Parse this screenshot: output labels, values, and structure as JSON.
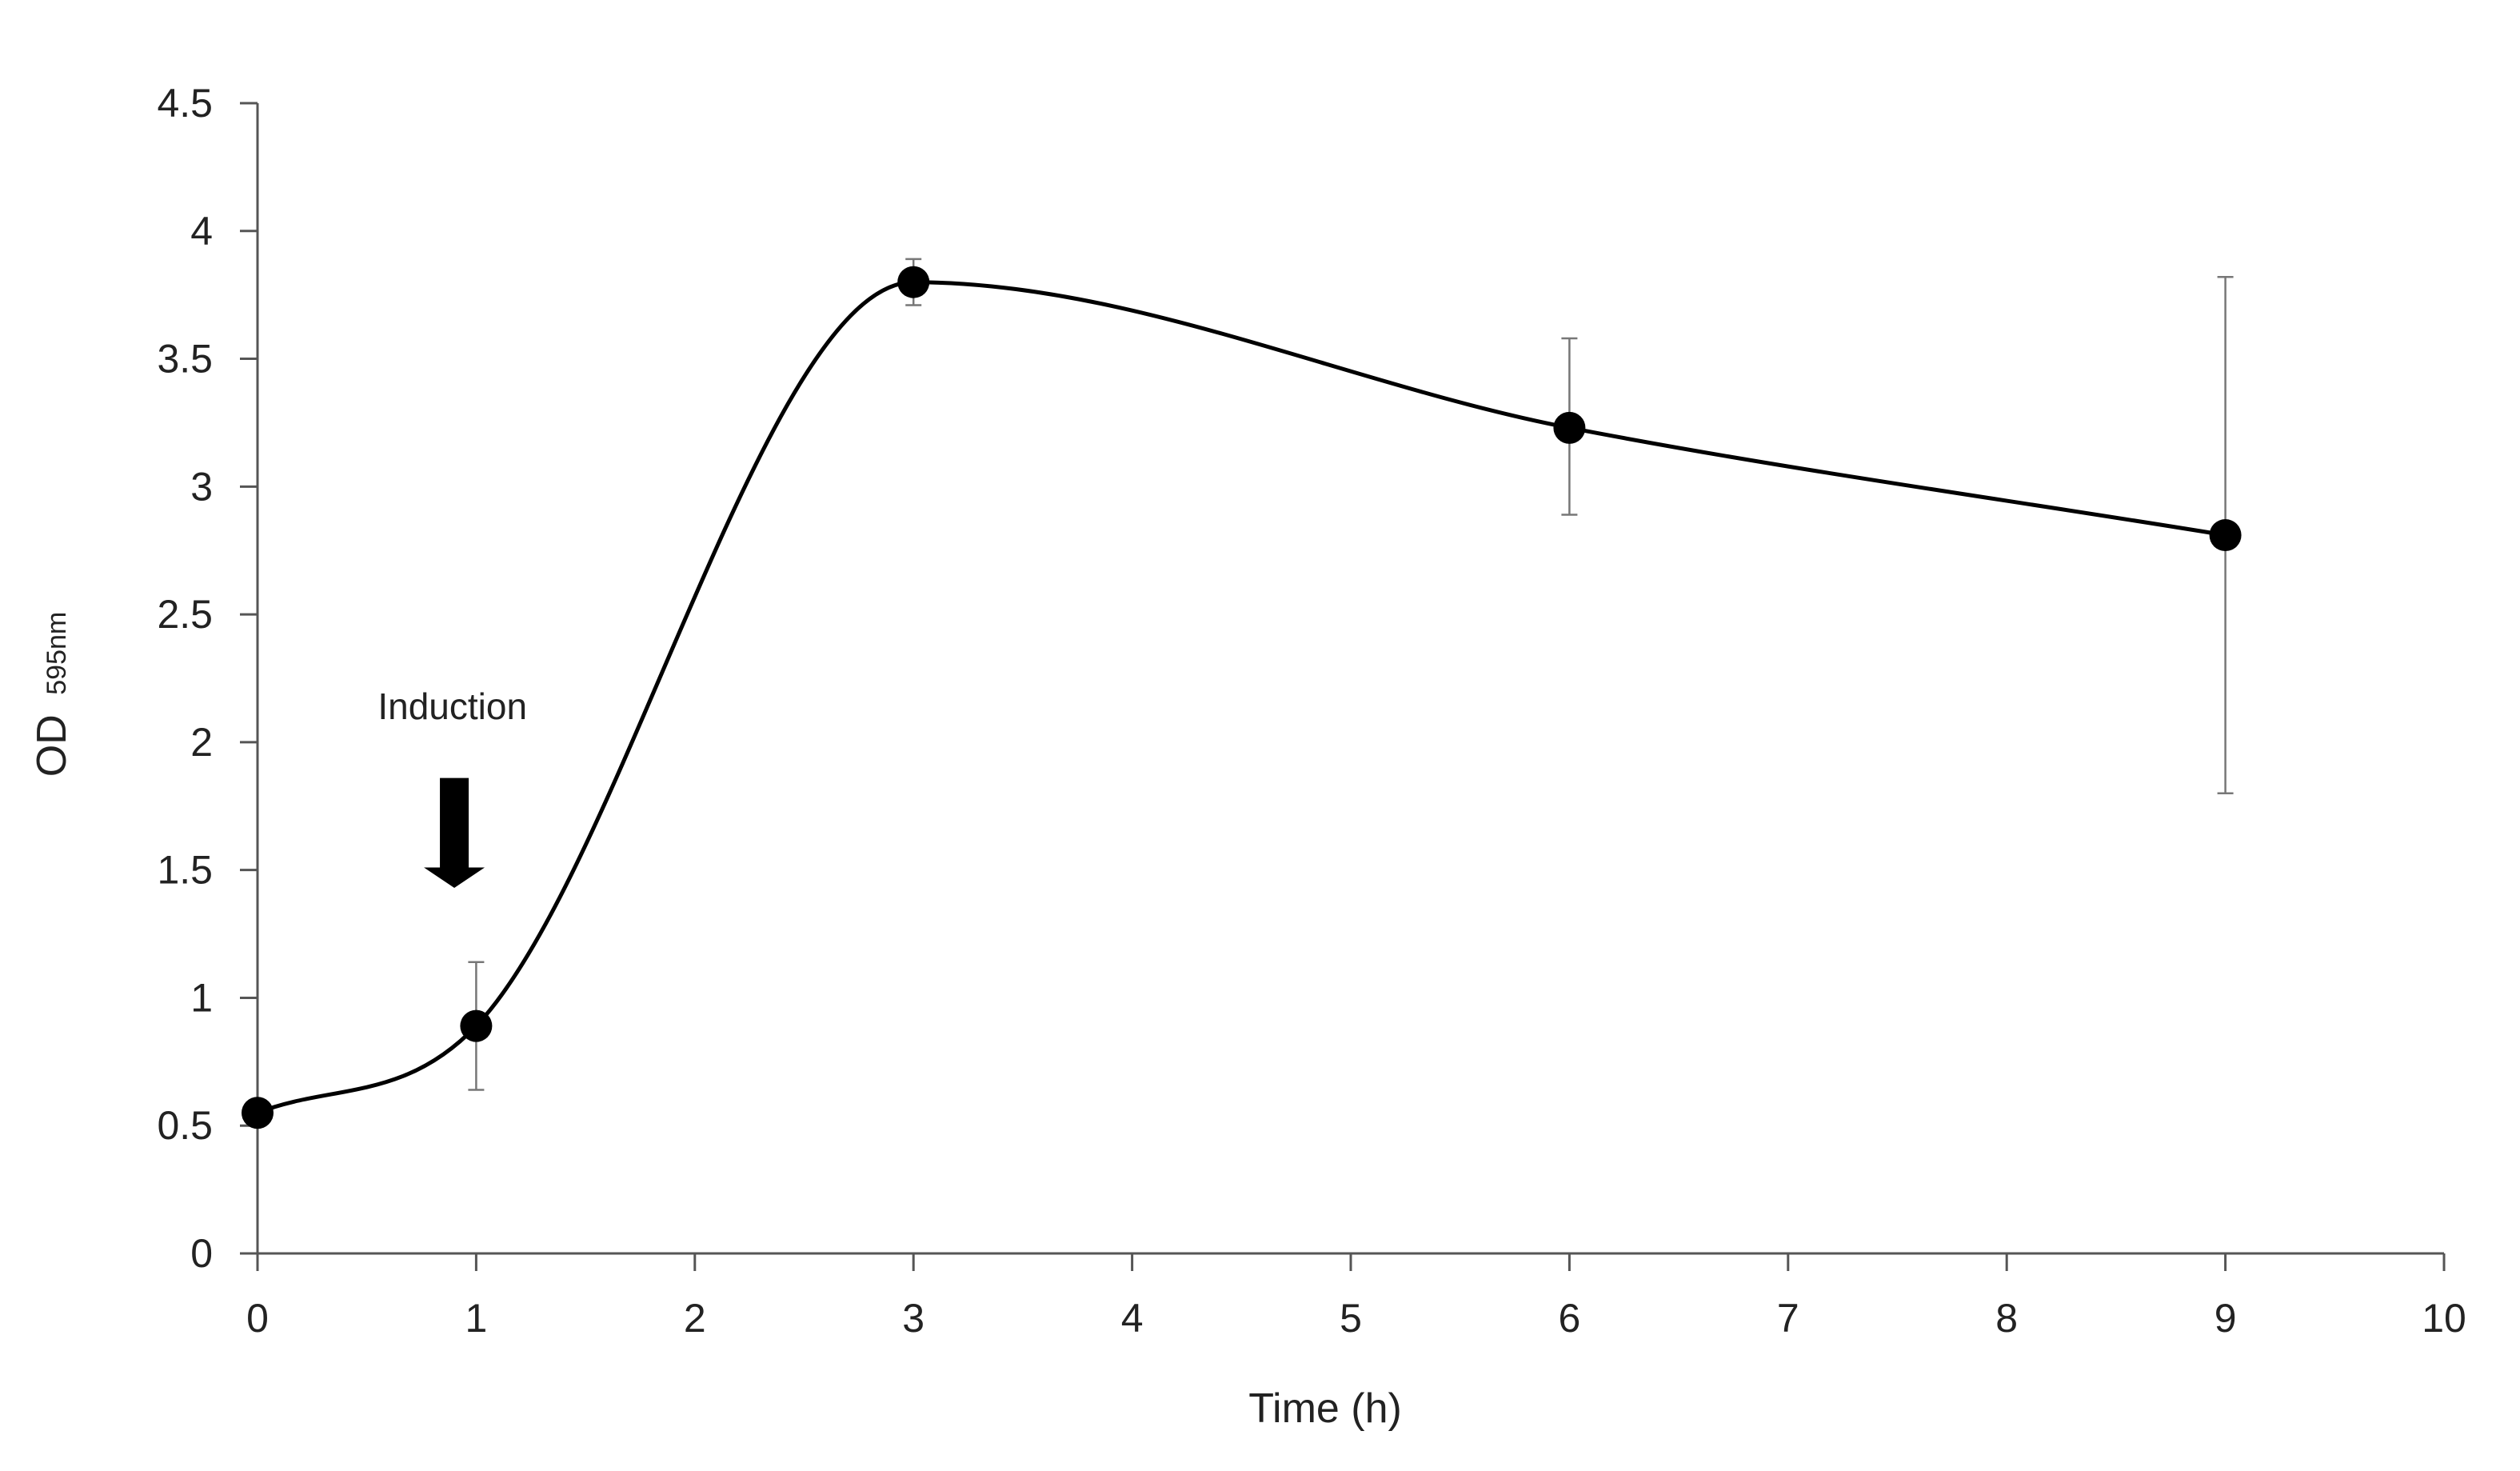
{
  "chart_data": {
    "type": "line",
    "title": "",
    "xlabel": "Time (h)",
    "ylabel": {
      "main": "OD",
      "subscript": "595nm"
    },
    "xlim": [
      0,
      10
    ],
    "ylim": [
      0,
      4.5
    ],
    "x_ticks": [
      0,
      1,
      2,
      3,
      4,
      5,
      6,
      7,
      8,
      9,
      10
    ],
    "x_tick_labels": [
      "0",
      "1",
      "2",
      "3",
      "4",
      "5",
      "6",
      "7",
      "8",
      "9",
      "10"
    ],
    "y_ticks": [
      0,
      0.5,
      1,
      1.5,
      2,
      2.5,
      3,
      3.5,
      4,
      4.5
    ],
    "y_tick_labels": [
      "0",
      "0.5",
      "1",
      "1.5",
      "2",
      "2.5",
      "3",
      "3.5",
      "4",
      "4.5"
    ],
    "grid": false,
    "smoothed": true,
    "series": [
      {
        "name": "OD 595nm",
        "color": "#000000",
        "points": [
          {
            "x": 0,
            "y": 0.55,
            "err_low": 0.55,
            "err_high": 0.55
          },
          {
            "x": 1,
            "y": 0.89,
            "err_low": 0.64,
            "err_high": 1.14
          },
          {
            "x": 3,
            "y": 3.8,
            "err_low": 3.71,
            "err_high": 3.89
          },
          {
            "x": 6,
            "y": 3.23,
            "err_low": 2.89,
            "err_high": 3.58
          },
          {
            "x": 9,
            "y": 2.81,
            "err_low": 1.8,
            "err_high": 3.82
          }
        ]
      }
    ],
    "annotations": [
      {
        "text": "Induction",
        "x": 0.9,
        "y": 2.14,
        "icon": "down-arrow-icon"
      }
    ]
  }
}
